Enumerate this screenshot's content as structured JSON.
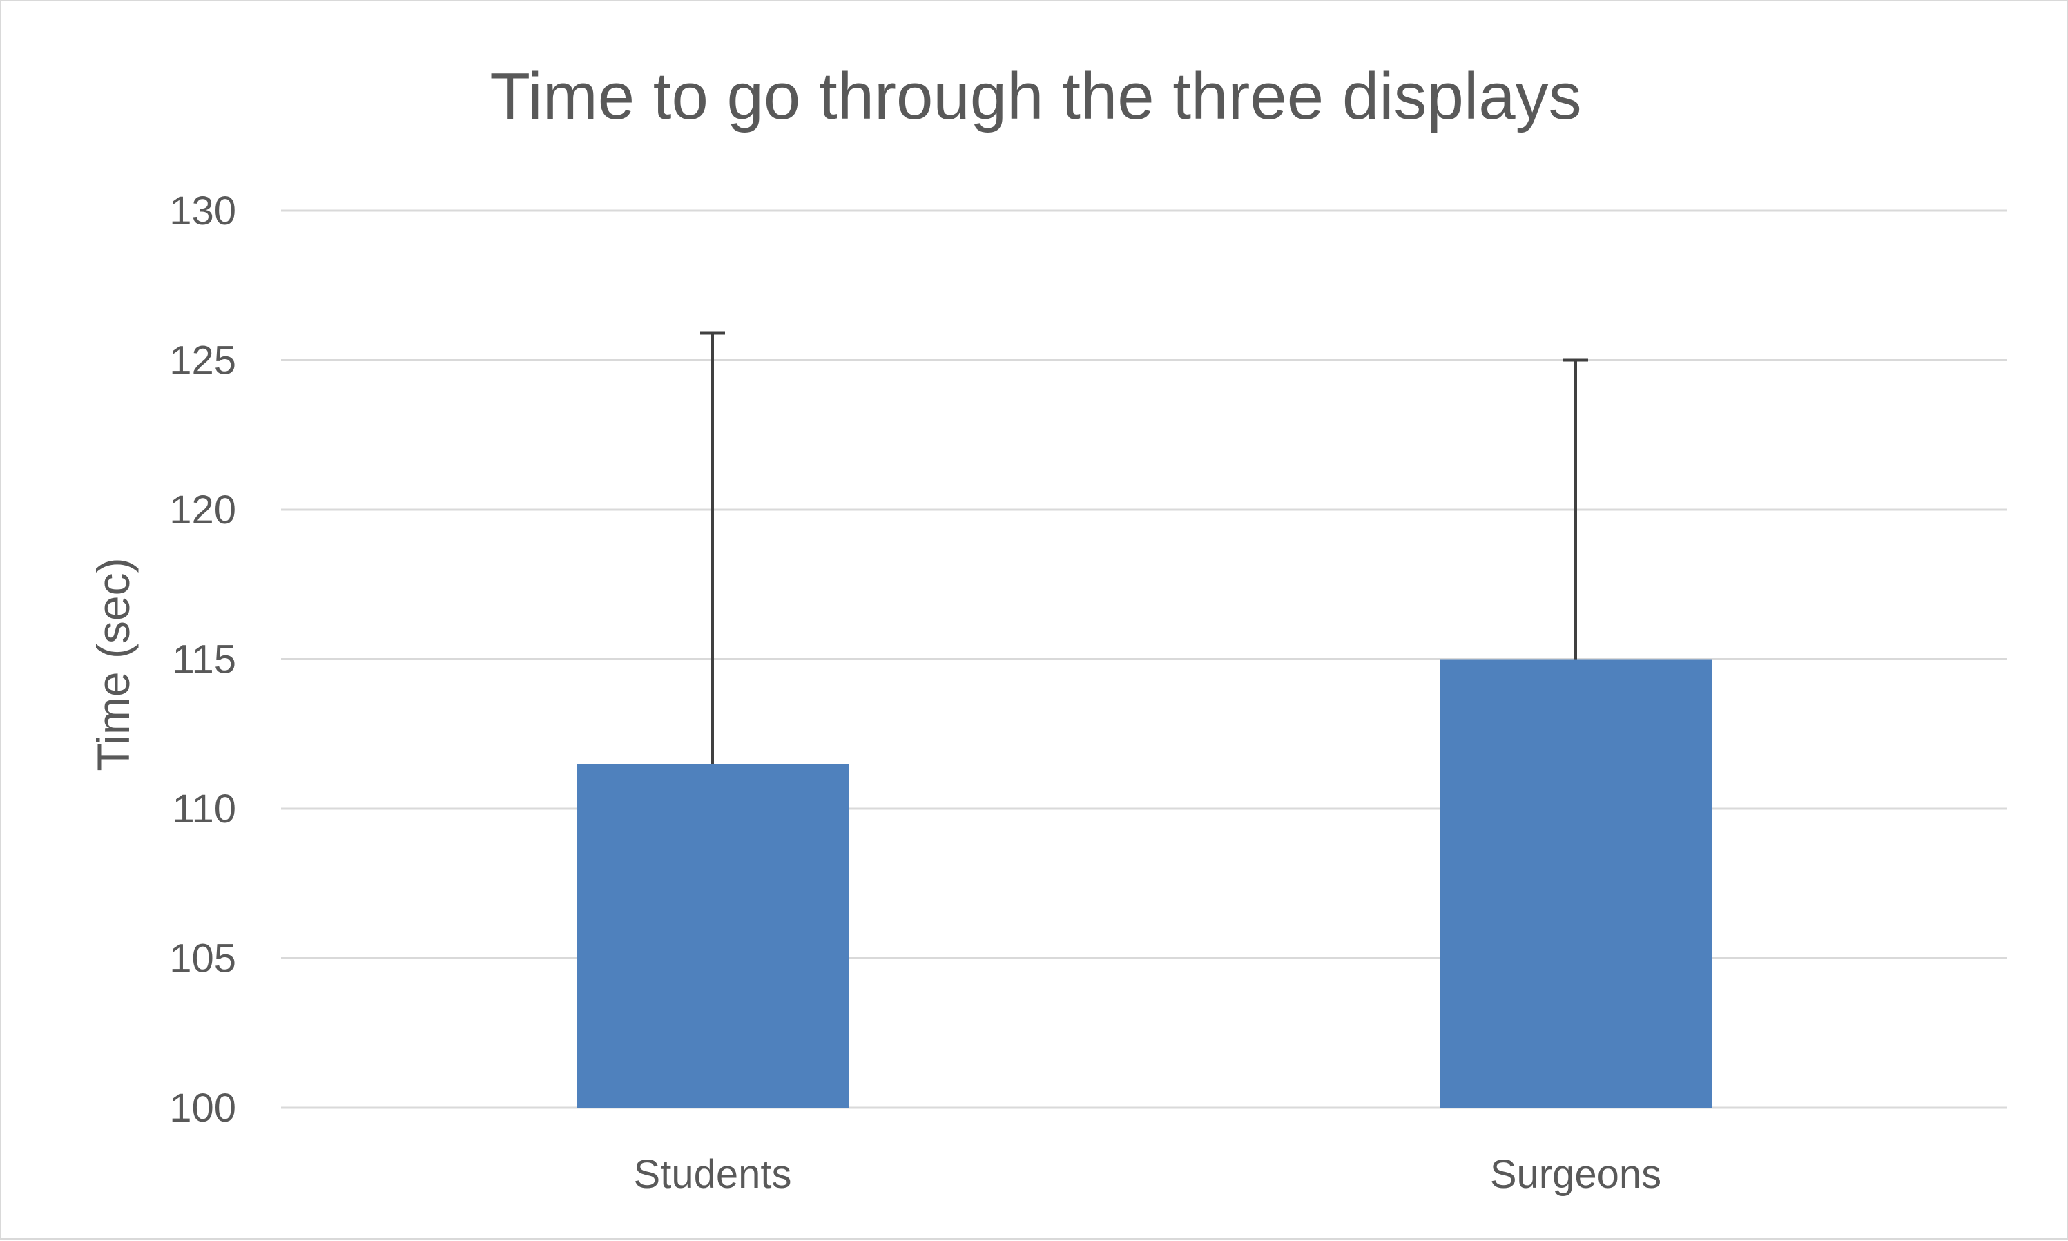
{
  "chart_data": {
    "type": "bar",
    "title": "Time to go through the three displays",
    "xlabel": "",
    "ylabel": "Time (sec)",
    "categories": [
      "Students",
      "Surgeons"
    ],
    "values": [
      111.5,
      115
    ],
    "error_upper": [
      14.4,
      10
    ],
    "ylim": [
      100,
      130
    ],
    "yticks": [
      100,
      105,
      110,
      115,
      120,
      125,
      130
    ],
    "grid": true,
    "legend": "none",
    "colors": {
      "bar": "#4f81bd",
      "grid": "#d9d9d9",
      "error": "#404040",
      "text": "#595959"
    }
  }
}
